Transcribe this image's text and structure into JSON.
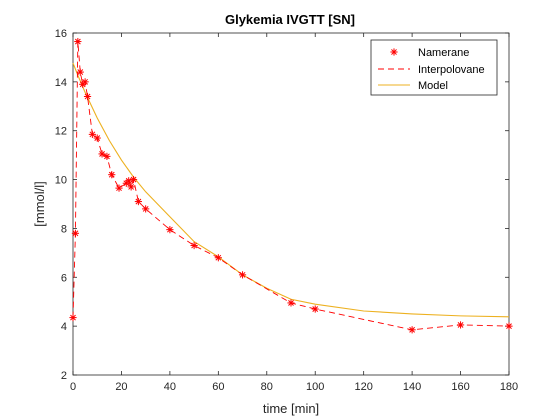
{
  "chart_data": {
    "type": "line",
    "title": "Glykemia IVGTT [SN]",
    "xlabel": "time [min]",
    "ylabel": "[mmol/l]",
    "xlim": [
      0,
      180
    ],
    "ylim": [
      2,
      16
    ],
    "xticks": [
      0,
      20,
      40,
      60,
      80,
      100,
      120,
      140,
      160,
      180
    ],
    "yticks": [
      2,
      4,
      6,
      8,
      10,
      12,
      14,
      16
    ],
    "grid": false,
    "legend_position": "top-right",
    "series": [
      {
        "name": "Namerane",
        "style": "markers",
        "marker": "asterisk",
        "color": "#ff0000",
        "x": [
          0,
          1,
          2,
          3,
          4,
          5,
          6,
          8,
          10,
          12,
          14,
          16,
          19,
          22,
          23,
          24,
          25,
          27,
          30,
          40,
          50,
          60,
          70,
          90,
          100,
          140,
          160,
          180
        ],
        "y": [
          4.35,
          7.8,
          15.65,
          14.4,
          13.9,
          14.0,
          13.4,
          11.85,
          11.7,
          11.05,
          10.95,
          10.2,
          9.65,
          9.85,
          9.95,
          9.7,
          10.0,
          9.1,
          8.8,
          7.95,
          7.3,
          6.8,
          6.1,
          4.95,
          4.7,
          3.85,
          4.05,
          4.0
        ]
      },
      {
        "name": "Interpolovane",
        "style": "dashed-line",
        "color": "#ff0000",
        "x": [
          0,
          1,
          2,
          3,
          4,
          5,
          6,
          8,
          10,
          12,
          14,
          16,
          19,
          22,
          23,
          24,
          25,
          27,
          30,
          40,
          50,
          60,
          70,
          90,
          100,
          140,
          160,
          180
        ],
        "y": [
          4.35,
          7.8,
          15.65,
          14.4,
          13.9,
          14.0,
          13.4,
          11.85,
          11.7,
          11.05,
          10.95,
          10.2,
          9.65,
          9.85,
          9.95,
          9.7,
          10.0,
          9.1,
          8.8,
          7.95,
          7.3,
          6.8,
          6.1,
          4.95,
          4.7,
          3.85,
          4.05,
          4.0
        ]
      },
      {
        "name": "Model",
        "style": "solid-line",
        "color": "#edb120",
        "x": [
          0,
          2,
          5,
          10,
          15,
          20,
          25,
          30,
          40,
          50,
          60,
          70,
          80,
          90,
          100,
          120,
          140,
          160,
          180
        ],
        "y": [
          14.77,
          14.27,
          13.57,
          12.52,
          11.6,
          10.8,
          10.1,
          9.5,
          8.48,
          7.46,
          6.84,
          6.1,
          5.55,
          5.1,
          4.9,
          4.62,
          4.5,
          4.42,
          4.38
        ]
      }
    ]
  }
}
